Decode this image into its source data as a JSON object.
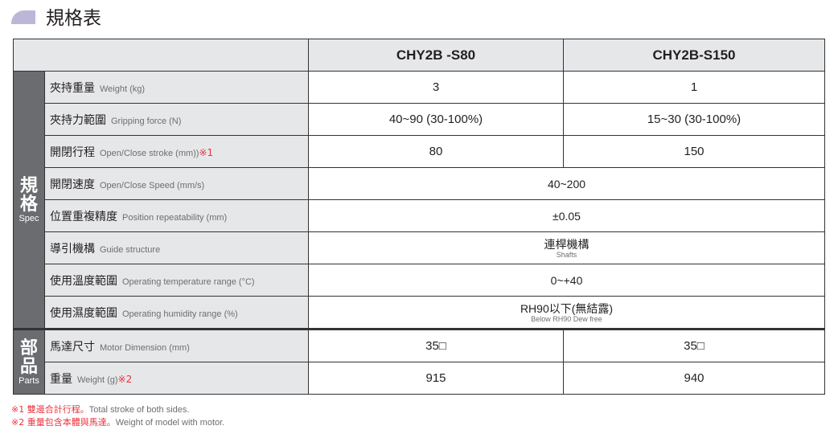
{
  "title": "規格表",
  "columns": [
    "CHY2B -S80",
    "CHY2B-S150"
  ],
  "sections": {
    "spec": {
      "zh": "規格",
      "en": "Spec"
    },
    "parts": {
      "zh": "部品",
      "en": "Parts"
    }
  },
  "rows": [
    {
      "zh": "夾持重量",
      "en": "Weight (kg)",
      "note": "",
      "v1": "3",
      "v2": "1"
    },
    {
      "zh": "夾持力範圍",
      "en": "Gripping force (N)",
      "note": "",
      "v1": "40~90 (30-100%)",
      "v2": "15~30 (30-100%)"
    },
    {
      "zh": "開閉行程",
      "en": "Open/Close  stroke (mm))",
      "note": "※1",
      "v1": "80",
      "v2": "150"
    },
    {
      "zh": "開閉速度",
      "en": "Open/Close Speed (mm/s)",
      "note": "",
      "v": "40~200"
    },
    {
      "zh": "位置重複精度",
      "en": "Position repeatability (mm)",
      "note": "",
      "v": "±0.05"
    },
    {
      "zh": "導引機構",
      "en": "Guide structure",
      "note": "",
      "v": "連桿機構",
      "vsub": "Shafts"
    },
    {
      "zh": "使用溫度範圍",
      "en": "Operating temperature range (°C)",
      "note": "",
      "v": "0~+40"
    },
    {
      "zh": "使用濕度範圍",
      "en": "Operating humidity range (%)",
      "note": "",
      "v": "RH90以下(無結露)",
      "vsub": "Below RH90 Dew free"
    },
    {
      "zh": "馬達尺寸",
      "en": "Motor Dimension (mm)",
      "note": "",
      "v1": "35□",
      "v2": "35□"
    },
    {
      "zh": "重量",
      "en": "Weight (g)",
      "note": "※2",
      "v1": "915",
      "v2": "940"
    }
  ],
  "notes": [
    {
      "mark": "※1 雙邊合計行程。",
      "text": "Total stroke of both sides."
    },
    {
      "mark": "※2 重量包含本體與馬達。",
      "text": "Weight of model with motor."
    }
  ]
}
